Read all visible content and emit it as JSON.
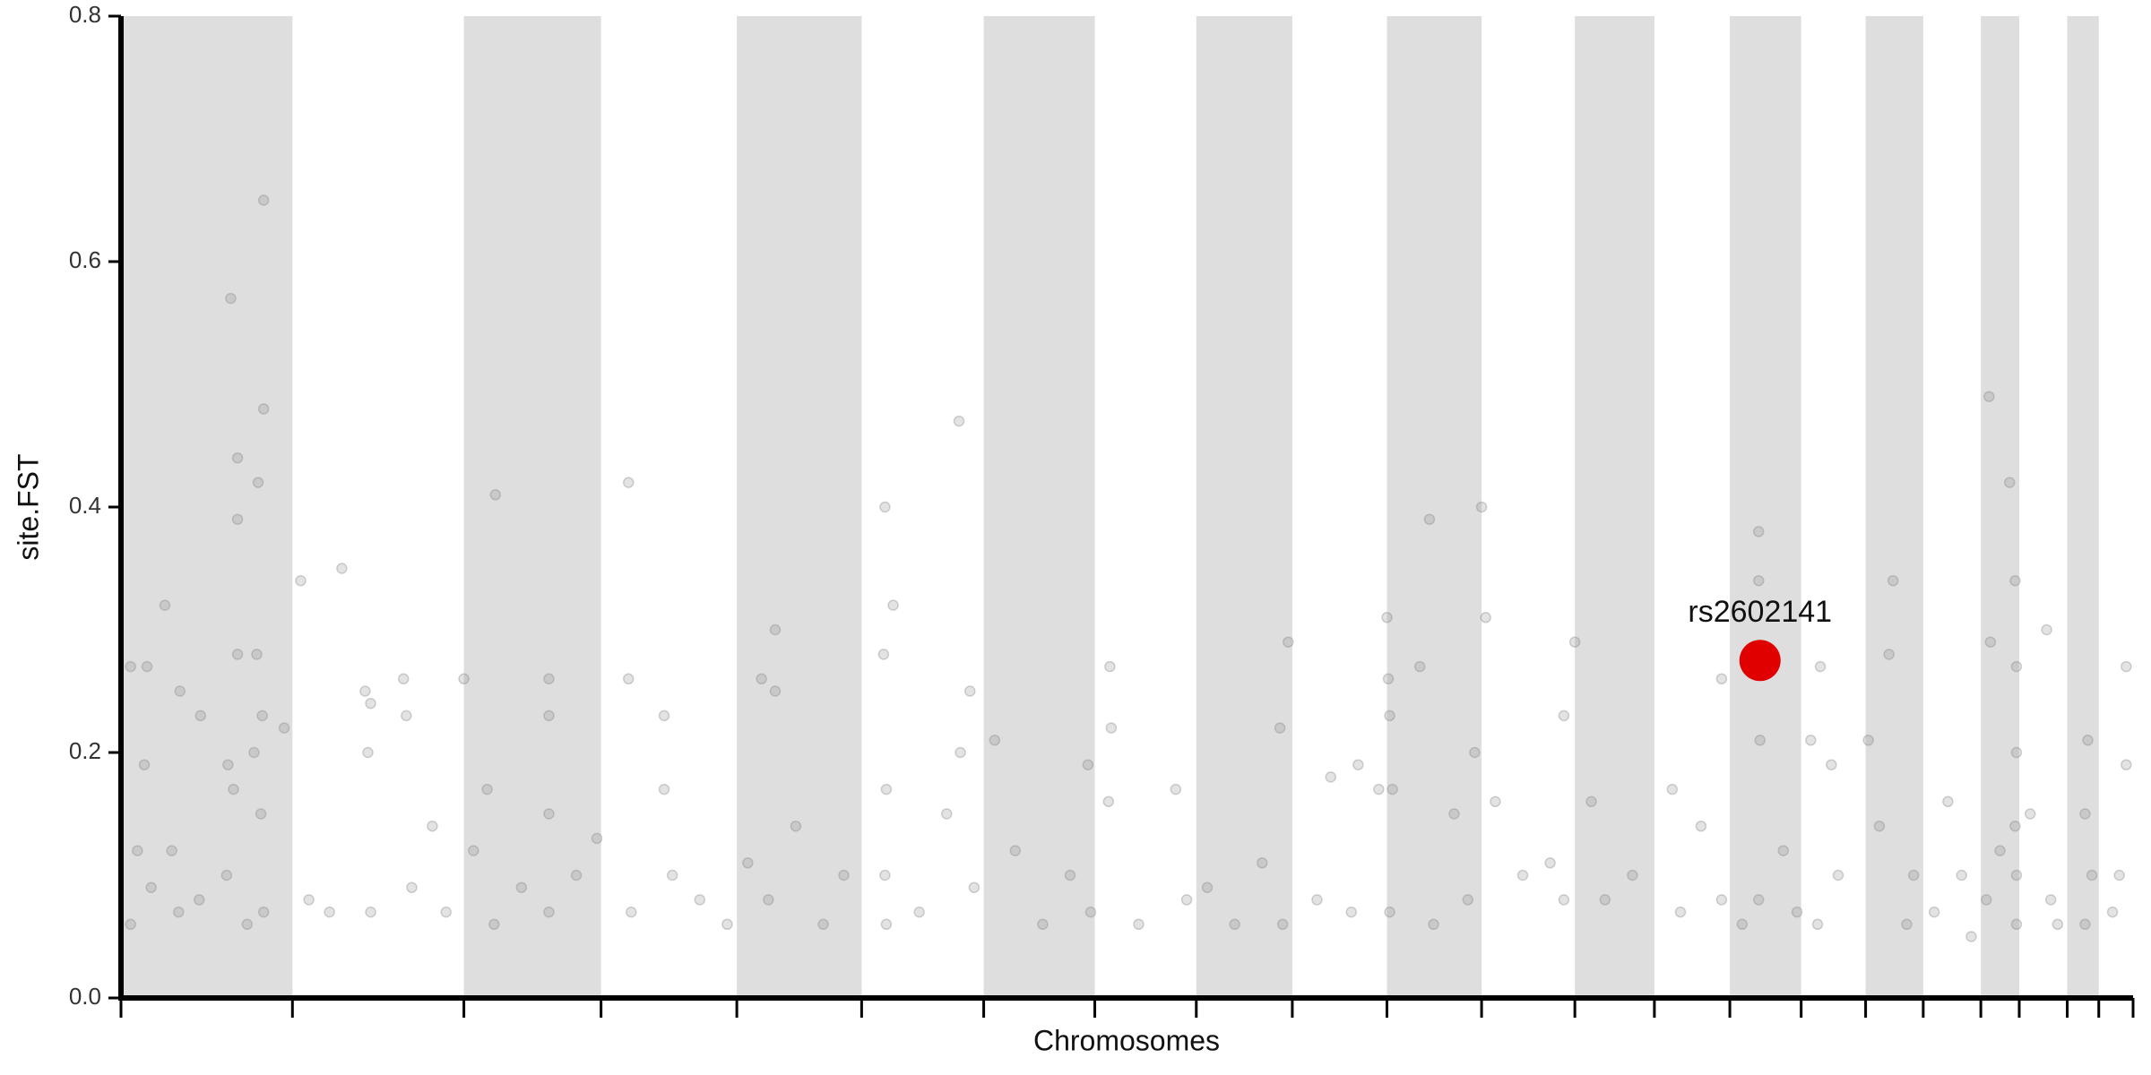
{
  "chart_data": {
    "type": "scatter",
    "xlabel": "Chromosomes",
    "ylabel": "site.FST",
    "xlim": [
      0,
      1467
    ],
    "ylim": [
      0,
      0.8
    ],
    "yticks": [
      {
        "value": 0,
        "label": "0.0"
      },
      0.2,
      0.4,
      0.6,
      0.8
    ],
    "chromosome_bounds": [
      0,
      125,
      250,
      350,
      449,
      540,
      629,
      710,
      784,
      854,
      923,
      992,
      1060,
      1118,
      1173,
      1225,
      1272,
      1314,
      1356,
      1384,
      1419,
      1442,
      1467
    ],
    "band_color": "#dedede",
    "series": [
      {
        "color": "#808080",
        "x": [
          7,
          17,
          19,
          32,
          43,
          58,
          80,
          85,
          85,
          85,
          100,
          104,
          104,
          99,
          103,
          78,
          82,
          97,
          119,
          7,
          22,
          42,
          57,
          77,
          92,
          104,
          12,
          37,
          102,
          131,
          161,
          178,
          182,
          206,
          208,
          180,
          137,
          152,
          182,
          212,
          227,
          237,
          250,
          273,
          267,
          312,
          312,
          312,
          257,
          272,
          292,
          312,
          332,
          347,
          370,
          370,
          396,
          396,
          372,
          402,
          422,
          442,
          477,
          467,
          477,
          457,
          472,
          492,
          512,
          527,
          557,
          563,
          556,
          558,
          557,
          558,
          582,
          611,
          619,
          612,
          602,
          622,
          637,
          652,
          672,
          692,
          705,
          707,
          721,
          722,
          720,
          742,
          769,
          777,
          851,
          845,
          792,
          812,
          832,
          847,
          882,
          902,
          917,
          872,
          897,
          923,
          924,
          925,
          927,
          925,
          954,
          947,
          972,
          987,
          982,
          957,
          992,
          995,
          1002,
          1022,
          1042,
          1052,
          1060,
          1072,
          1052,
          1082,
          1102,
          1131,
          1152,
          1167,
          1167,
          1137,
          1194,
          1194,
          1195,
          1194,
          1212,
          1182,
          1222,
          1239,
          1232,
          1247,
          1252,
          1237,
          1292,
          1274,
          1289,
          1282,
          1307,
          1302,
          1332,
          1342,
          1322,
          1349,
          1362,
          1377,
          1381,
          1382,
          1363,
          1382,
          1381,
          1382,
          1382,
          1360,
          1370,
          1404,
          1392,
          1407,
          1412,
          1434,
          1432,
          1432,
          1437,
          1462,
          1462,
          1457,
          1452
        ],
        "values": [
          0.27,
          0.19,
          0.27,
          0.32,
          0.25,
          0.23,
          0.57,
          0.44,
          0.39,
          0.28,
          0.42,
          0.48,
          0.65,
          0.28,
          0.23,
          0.19,
          0.17,
          0.2,
          0.22,
          0.06,
          0.09,
          0.07,
          0.08,
          0.1,
          0.06,
          0.07,
          0.12,
          0.12,
          0.15,
          0.34,
          0.35,
          0.25,
          0.24,
          0.26,
          0.23,
          0.2,
          0.08,
          0.07,
          0.07,
          0.09,
          0.14,
          0.07,
          0.26,
          0.41,
          0.17,
          0.26,
          0.23,
          0.15,
          0.12,
          0.06,
          0.09,
          0.07,
          0.1,
          0.13,
          0.42,
          0.26,
          0.23,
          0.17,
          0.07,
          0.1,
          0.08,
          0.06,
          0.3,
          0.26,
          0.25,
          0.11,
          0.08,
          0.14,
          0.06,
          0.1,
          0.4,
          0.32,
          0.28,
          0.17,
          0.1,
          0.06,
          0.07,
          0.47,
          0.25,
          0.2,
          0.15,
          0.09,
          0.21,
          0.12,
          0.06,
          0.1,
          0.19,
          0.07,
          0.27,
          0.22,
          0.16,
          0.06,
          0.17,
          0.08,
          0.29,
          0.22,
          0.09,
          0.06,
          0.11,
          0.06,
          0.18,
          0.19,
          0.17,
          0.08,
          0.07,
          0.31,
          0.26,
          0.23,
          0.17,
          0.07,
          0.39,
          0.27,
          0.15,
          0.2,
          0.08,
          0.06,
          0.4,
          0.31,
          0.16,
          0.1,
          0.11,
          0.23,
          0.29,
          0.16,
          0.08,
          0.08,
          0.1,
          0.17,
          0.14,
          0.26,
          0.08,
          0.07,
          0.38,
          0.34,
          0.21,
          0.08,
          0.12,
          0.06,
          0.07,
          0.27,
          0.21,
          0.19,
          0.1,
          0.06,
          0.34,
          0.21,
          0.28,
          0.14,
          0.1,
          0.06,
          0.16,
          0.1,
          0.07,
          0.05,
          0.49,
          0.42,
          0.34,
          0.27,
          0.29,
          0.2,
          0.14,
          0.1,
          0.06,
          0.08,
          0.12,
          0.3,
          0.15,
          0.08,
          0.06,
          0.21,
          0.15,
          0.06,
          0.1,
          0.27,
          0.19,
          0.1,
          0.07
        ]
      }
    ],
    "highlight": {
      "label": "rs2602141",
      "x": 1195,
      "y": 0.275,
      "color": "#e00000"
    }
  }
}
